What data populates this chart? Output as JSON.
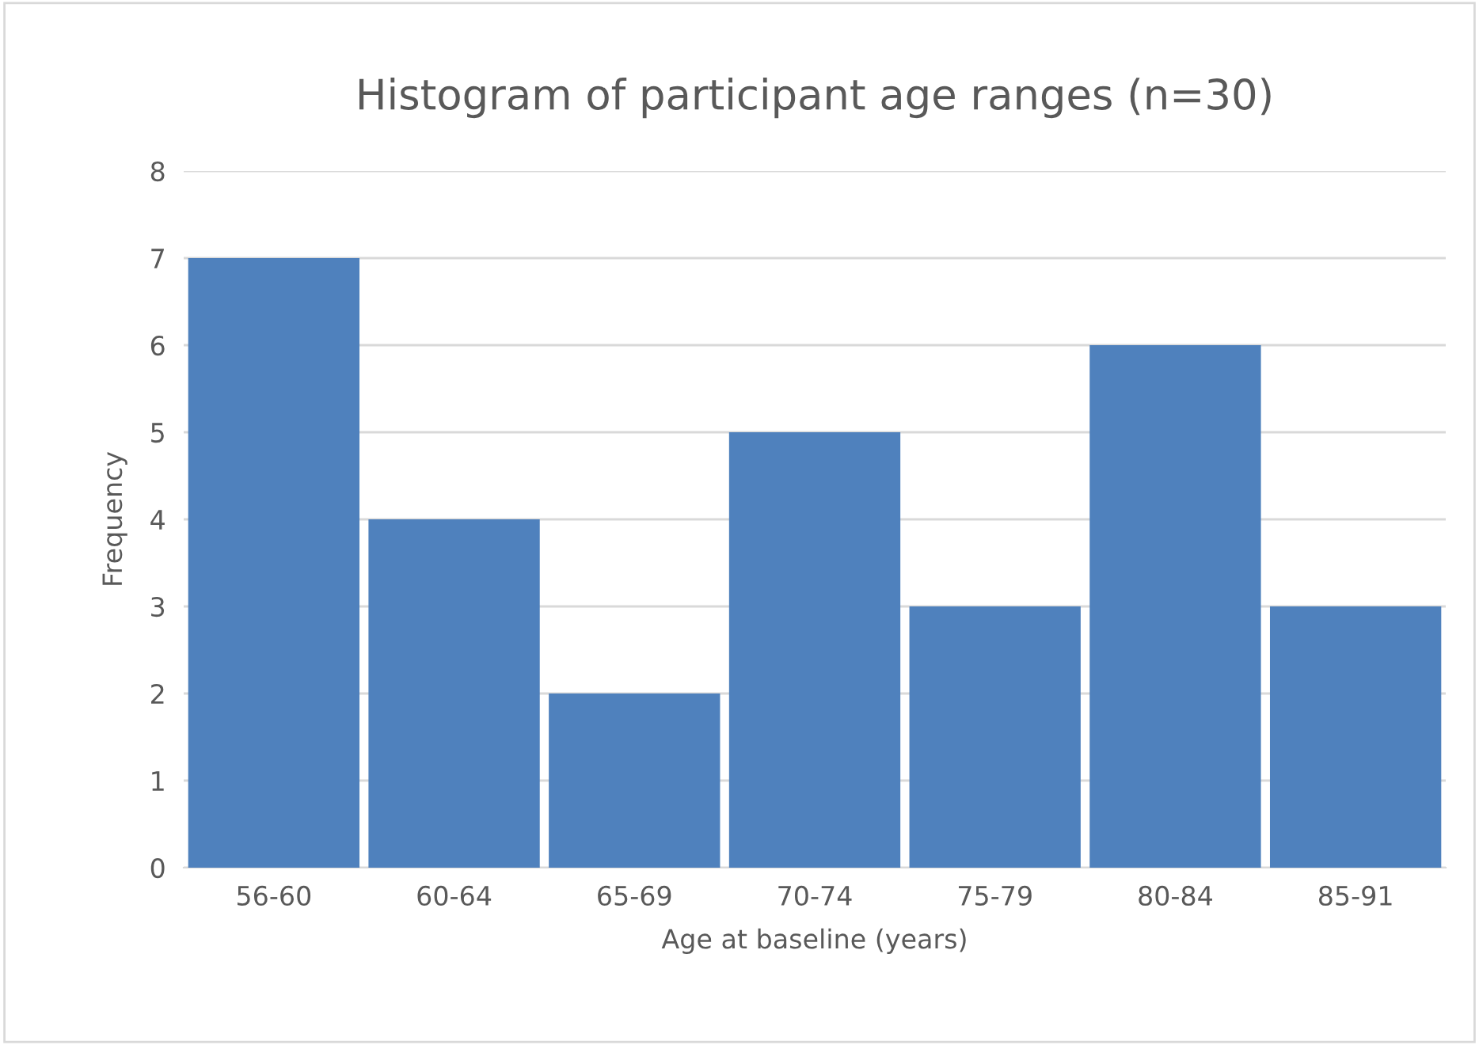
{
  "chart_data": {
    "type": "bar",
    "title": "Histogram of participant age ranges (n=30)",
    "xlabel": "Age at baseline (years)",
    "ylabel": "Frequency",
    "categories": [
      "56-60",
      "60-64",
      "65-69",
      "70-74",
      "75-79",
      "80-84",
      "85-91"
    ],
    "values": [
      7,
      4,
      2,
      5,
      3,
      6,
      3
    ],
    "color": "#4f81bd",
    "ylim": [
      0,
      8
    ],
    "yticks": [
      0,
      1,
      2,
      3,
      4,
      5,
      6,
      7,
      8
    ],
    "grid": "y",
    "legend": false
  }
}
